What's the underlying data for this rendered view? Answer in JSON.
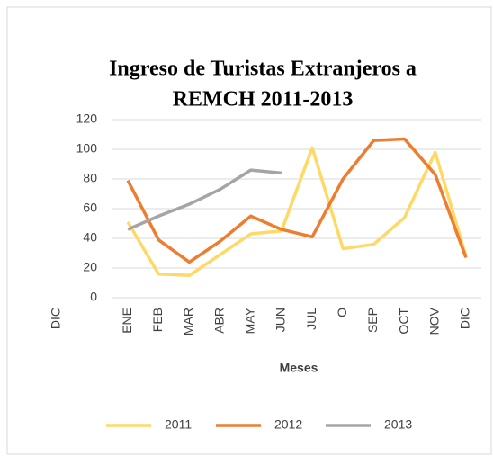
{
  "chart_data": {
    "type": "line",
    "title_lines": [
      "Ingreso de Turistas Extranjeros a",
      "REMCH 2011-2013"
    ],
    "x_label": "Meses",
    "stray_label": "DIC",
    "categories": [
      "ENE",
      "FEB",
      "MAR",
      "ABR",
      "MAY",
      "JUN",
      "JUL",
      "O",
      "SEP",
      "OCT",
      "NOV",
      "DIC"
    ],
    "series": [
      {
        "name": "2011",
        "color": "#ffd966",
        "values": [
          51,
          16,
          15,
          29,
          43,
          45,
          101,
          33,
          36,
          54,
          98,
          28
        ]
      },
      {
        "name": "2012",
        "color": "#ed7d31",
        "values": [
          79,
          39,
          24,
          38,
          55,
          46,
          41,
          80,
          106,
          107,
          83,
          27
        ]
      },
      {
        "name": "2013",
        "color": "#a5a5a5",
        "values": [
          46,
          55,
          63,
          73,
          86,
          84,
          null,
          null,
          null,
          null,
          null,
          null
        ]
      }
    ],
    "ylim": [
      0,
      120
    ],
    "yticks": [
      0,
      20,
      40,
      60,
      80,
      100,
      120
    ],
    "grid": true,
    "legend": "bottom"
  }
}
